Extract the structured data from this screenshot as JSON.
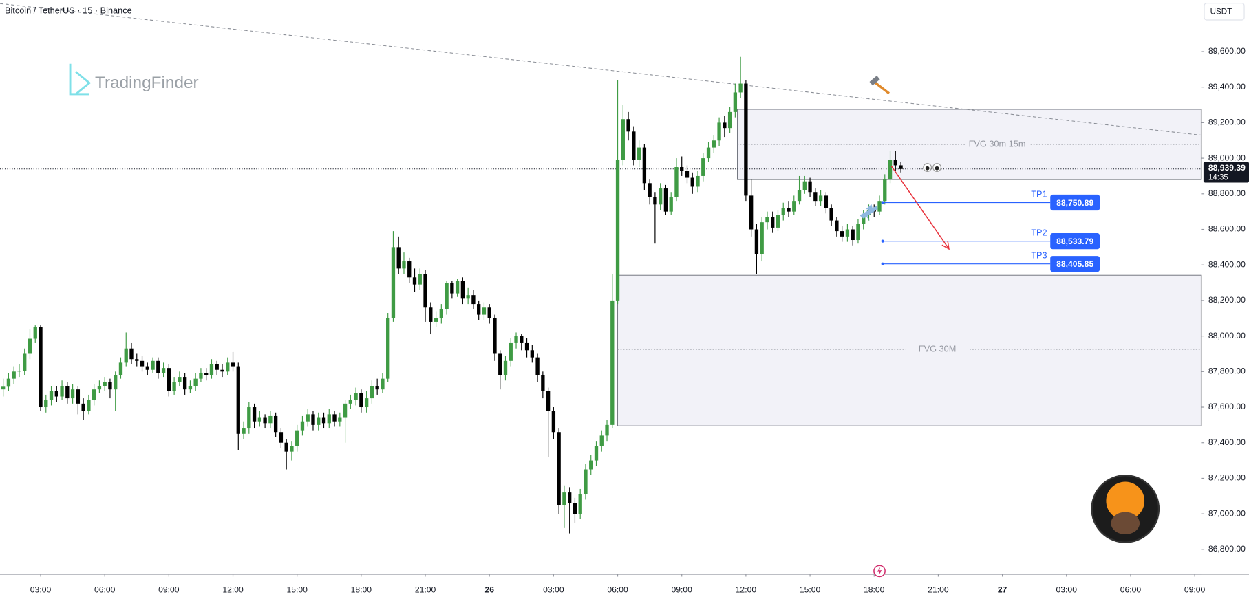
{
  "chart_data": {
    "type": "candlestick",
    "title": "Bitcoin / TetherUS · 15 · Binance",
    "currency": "USDT",
    "watermark": "TradingFinder",
    "up_color": "#3f9b44",
    "down_color": "#000000",
    "grid": false,
    "xlim": [
      1.1,
      57.3
    ],
    "ylim": [
      86660,
      89890
    ],
    "xticks": [
      {
        "value": 3,
        "label": "03:00"
      },
      {
        "value": 6,
        "label": "06:00"
      },
      {
        "value": 9,
        "label": "09:00"
      },
      {
        "value": 12,
        "label": "12:00"
      },
      {
        "value": 15,
        "label": "15:00"
      },
      {
        "value": 18,
        "label": "18:00"
      },
      {
        "value": 21,
        "label": "21:00"
      },
      {
        "value": 24,
        "label": "26"
      },
      {
        "value": 27,
        "label": "03:00"
      },
      {
        "value": 30,
        "label": "06:00"
      },
      {
        "value": 33,
        "label": "09:00"
      },
      {
        "value": 36,
        "label": "12:00"
      },
      {
        "value": 39,
        "label": "15:00"
      },
      {
        "value": 42,
        "label": "18:00"
      },
      {
        "value": 45,
        "label": "21:00"
      },
      {
        "value": 48,
        "label": "27"
      },
      {
        "value": 51,
        "label": "03:00"
      },
      {
        "value": 54,
        "label": "06:00"
      },
      {
        "value": 57,
        "label": "09:00"
      }
    ],
    "yticks": [
      {
        "value": 86800,
        "label": "86,800.00"
      },
      {
        "value": 87000,
        "label": "87,000.00"
      },
      {
        "value": 87200,
        "label": "87,200.00"
      },
      {
        "value": 87400,
        "label": "87,400.00"
      },
      {
        "value": 87600,
        "label": "87,600.00"
      },
      {
        "value": 87800,
        "label": "87,800.00"
      },
      {
        "value": 88000,
        "label": "88,000.00"
      },
      {
        "value": 88200,
        "label": "88,200.00"
      },
      {
        "value": 88400,
        "label": "88,400.00"
      },
      {
        "value": 88600,
        "label": "88,600.00"
      },
      {
        "value": 88800,
        "label": "88,800.00"
      },
      {
        "value": 89000,
        "label": "89,000.00"
      },
      {
        "value": 89200,
        "label": "89,200.00"
      },
      {
        "value": 89400,
        "label": "89,400.00"
      },
      {
        "value": 89600,
        "label": "89,600.00"
      }
    ],
    "x": [
      1.25,
      1.5,
      1.75,
      2,
      2.25,
      2.5,
      2.75,
      3,
      3.25,
      3.5,
      3.75,
      4,
      4.25,
      4.5,
      4.75,
      5,
      5.25,
      5.5,
      5.75,
      6,
      6.25,
      6.5,
      6.75,
      7,
      7.25,
      7.5,
      7.75,
      8,
      8.25,
      8.5,
      8.75,
      9,
      9.25,
      9.5,
      9.75,
      10,
      10.25,
      10.5,
      10.75,
      11,
      11.25,
      11.5,
      11.75,
      12,
      12.25,
      12.5,
      12.75,
      13,
      13.25,
      13.5,
      13.75,
      14,
      14.25,
      14.5,
      14.75,
      15,
      15.25,
      15.5,
      15.75,
      16,
      16.25,
      16.5,
      16.75,
      17,
      17.25,
      17.5,
      17.75,
      18,
      18.25,
      18.5,
      18.75,
      19,
      19.25,
      19.5,
      19.75,
      20,
      20.25,
      20.5,
      20.75,
      21,
      21.25,
      21.5,
      21.75,
      22,
      22.25,
      22.5,
      22.75,
      23,
      23.25,
      23.5,
      23.75,
      24,
      24.25,
      24.5,
      24.75,
      25,
      25.25,
      25.5,
      25.75,
      26,
      26.25,
      26.5,
      26.75,
      27,
      27.25,
      27.5,
      27.75,
      28,
      28.25,
      28.5,
      28.75,
      29,
      29.25,
      29.5,
      29.75,
      30,
      30.25,
      30.5,
      30.75,
      31,
      31.25,
      31.5,
      31.75,
      32,
      32.25,
      32.5,
      32.75,
      33,
      33.25,
      33.5,
      33.75,
      34,
      34.25,
      34.5,
      34.75,
      35,
      35.25,
      35.5,
      35.75,
      36,
      36.25,
      36.5,
      36.75,
      37,
      37.25,
      37.5,
      37.75,
      38,
      38.25,
      38.5,
      38.75,
      39,
      39.25,
      39.5,
      39.75,
      40,
      40.25,
      40.5,
      40.75,
      41,
      41.25,
      41.5,
      41.75,
      42,
      42.25,
      42.5,
      42.75,
      43,
      43.25
    ],
    "candles": [
      [
        87700,
        87760,
        87660,
        87715
      ],
      [
        87715,
        87790,
        87690,
        87760
      ],
      [
        87760,
        87830,
        87730,
        87800
      ],
      [
        87800,
        87840,
        87770,
        87805
      ],
      [
        87805,
        87930,
        87780,
        87900
      ],
      [
        87900,
        88040,
        87870,
        87985
      ],
      [
        87985,
        88060,
        87960,
        88050
      ],
      [
        88050,
        88060,
        87580,
        87600
      ],
      [
        87600,
        87670,
        87570,
        87640
      ],
      [
        87640,
        87720,
        87610,
        87690
      ],
      [
        87690,
        87720,
        87630,
        87660
      ],
      [
        87660,
        87750,
        87640,
        87720
      ],
      [
        87720,
        87740,
        87620,
        87650
      ],
      [
        87650,
        87730,
        87620,
        87700
      ],
      [
        87700,
        87720,
        87560,
        87620
      ],
      [
        87620,
        87650,
        87530,
        87580
      ],
      [
        87580,
        87670,
        87560,
        87640
      ],
      [
        87640,
        87730,
        87610,
        87700
      ],
      [
        87700,
        87750,
        87680,
        87720
      ],
      [
        87720,
        87770,
        87690,
        87740
      ],
      [
        87740,
        87760,
        87650,
        87700
      ],
      [
        87700,
        87800,
        87580,
        87780
      ],
      [
        87780,
        87880,
        87760,
        87850
      ],
      [
        87850,
        88020,
        87830,
        87930
      ],
      [
        87930,
        87960,
        87840,
        87870
      ],
      [
        87870,
        87900,
        87830,
        87860
      ],
      [
        87860,
        87890,
        87800,
        87830
      ],
      [
        87830,
        87850,
        87780,
        87810
      ],
      [
        87810,
        87880,
        87790,
        87860
      ],
      [
        87860,
        87880,
        87760,
        87790
      ],
      [
        87790,
        87850,
        87770,
        87820
      ],
      [
        87820,
        87840,
        87660,
        87690
      ],
      [
        87690,
        87770,
        87670,
        87740
      ],
      [
        87740,
        87800,
        87720,
        87770
      ],
      [
        87770,
        87790,
        87670,
        87700
      ],
      [
        87700,
        87750,
        87680,
        87720
      ],
      [
        87720,
        87790,
        87690,
        87760
      ],
      [
        87760,
        87820,
        87740,
        87790
      ],
      [
        87790,
        87820,
        87750,
        87780
      ],
      [
        87780,
        87870,
        87760,
        87840
      ],
      [
        87840,
        87860,
        87780,
        87810
      ],
      [
        87810,
        87840,
        87770,
        87800
      ],
      [
        87800,
        87880,
        87780,
        87850
      ],
      [
        87850,
        87910,
        87800,
        87830
      ],
      [
        87830,
        87850,
        87360,
        87450
      ],
      [
        87450,
        87520,
        87420,
        87480
      ],
      [
        87480,
        87630,
        87450,
        87600
      ],
      [
        87600,
        87620,
        87480,
        87520
      ],
      [
        87520,
        87580,
        87490,
        87540
      ],
      [
        87540,
        87560,
        87480,
        87510
      ],
      [
        87510,
        87580,
        87480,
        87550
      ],
      [
        87550,
        87570,
        87430,
        87460
      ],
      [
        87460,
        87480,
        87370,
        87400
      ],
      [
        87400,
        87420,
        87250,
        87350
      ],
      [
        87350,
        87410,
        87300,
        87380
      ],
      [
        87380,
        87500,
        87350,
        87470
      ],
      [
        87470,
        87550,
        87440,
        87520
      ],
      [
        87520,
        87590,
        87490,
        87560
      ],
      [
        87560,
        87580,
        87470,
        87500
      ],
      [
        87500,
        87570,
        87470,
        87540
      ],
      [
        87540,
        87570,
        87480,
        87510
      ],
      [
        87510,
        87590,
        87480,
        87560
      ],
      [
        87560,
        87580,
        87490,
        87520
      ],
      [
        87520,
        87570,
        87490,
        87540
      ],
      [
        87540,
        87640,
        87400,
        87620
      ],
      [
        87620,
        87670,
        87590,
        87640
      ],
      [
        87640,
        87710,
        87610,
        87680
      ],
      [
        87680,
        87700,
        87570,
        87600
      ],
      [
        87600,
        87690,
        87570,
        87650
      ],
      [
        87650,
        87750,
        87620,
        87720
      ],
      [
        87720,
        87760,
        87670,
        87700
      ],
      [
        87700,
        87790,
        87680,
        87760
      ],
      [
        87760,
        88130,
        87740,
        88100
      ],
      [
        88100,
        88590,
        88080,
        88500
      ],
      [
        88500,
        88560,
        88350,
        88380
      ],
      [
        88380,
        88470,
        88350,
        88420
      ],
      [
        88420,
        88440,
        88300,
        88330
      ],
      [
        88330,
        88380,
        88250,
        88290
      ],
      [
        88290,
        88380,
        88260,
        88350
      ],
      [
        88350,
        88370,
        88080,
        88160
      ],
      [
        88160,
        88190,
        88010,
        88080
      ],
      [
        88080,
        88140,
        88050,
        88100
      ],
      [
        88100,
        88180,
        88070,
        88150
      ],
      [
        88150,
        88310,
        88120,
        88300
      ],
      [
        88300,
        88310,
        88210,
        88240
      ],
      [
        88240,
        88320,
        88220,
        88310
      ],
      [
        88310,
        88330,
        88180,
        88210
      ],
      [
        88210,
        88270,
        88180,
        88230
      ],
      [
        88230,
        88260,
        88150,
        88180
      ],
      [
        88180,
        88200,
        88090,
        88120
      ],
      [
        88120,
        88190,
        88090,
        88160
      ],
      [
        88160,
        88180,
        88070,
        88100
      ],
      [
        88100,
        88120,
        87860,
        87900
      ],
      [
        87900,
        87920,
        87700,
        87780
      ],
      [
        87780,
        87890,
        87750,
        87860
      ],
      [
        87860,
        87990,
        87830,
        87960
      ],
      [
        87960,
        88020,
        87930,
        88000
      ],
      [
        88000,
        88010,
        87920,
        87960
      ],
      [
        87960,
        87990,
        87880,
        87920
      ],
      [
        87920,
        87950,
        87850,
        87880
      ],
      [
        87880,
        87900,
        87740,
        87780
      ],
      [
        87780,
        87800,
        87650,
        87690
      ],
      [
        87690,
        87710,
        87320,
        87580
      ],
      [
        87580,
        87600,
        87420,
        87460
      ],
      [
        87460,
        87480,
        87000,
        87050
      ],
      [
        87050,
        87160,
        86920,
        87120
      ],
      [
        87120,
        87150,
        86890,
        87060
      ],
      [
        87060,
        87090,
        86950,
        87000
      ],
      [
        87000,
        87140,
        86970,
        87110
      ],
      [
        87110,
        87280,
        87080,
        87250
      ],
      [
        87250,
        87330,
        87220,
        87300
      ],
      [
        87300,
        87410,
        87270,
        87380
      ],
      [
        87380,
        87470,
        87350,
        87440
      ],
      [
        87440,
        87530,
        87410,
        87500
      ],
      [
        87500,
        88350,
        87480,
        88200
      ],
      [
        88200,
        89440,
        88180,
        88990
      ],
      [
        88990,
        89300,
        88960,
        89220
      ],
      [
        89220,
        89260,
        89100,
        89150
      ],
      [
        89150,
        89180,
        88960,
        88990
      ],
      [
        88990,
        89100,
        88950,
        89060
      ],
      [
        89060,
        89080,
        88820,
        88860
      ],
      [
        88860,
        88880,
        88740,
        88780
      ],
      [
        88780,
        88810,
        88520,
        88740
      ],
      [
        88740,
        88860,
        88710,
        88830
      ],
      [
        88830,
        88850,
        88680,
        88700
      ],
      [
        88700,
        88810,
        88680,
        88780
      ],
      [
        88780,
        89000,
        88760,
        88950
      ],
      [
        88950,
        89010,
        88900,
        88930
      ],
      [
        88930,
        88960,
        88860,
        88890
      ],
      [
        88890,
        88920,
        88800,
        88840
      ],
      [
        88840,
        88930,
        88810,
        88900
      ],
      [
        88900,
        89030,
        88870,
        89000
      ],
      [
        89000,
        89090,
        88980,
        89060
      ],
      [
        89060,
        89130,
        89030,
        89100
      ],
      [
        89100,
        89230,
        89070,
        89200
      ],
      [
        89200,
        89240,
        89120,
        89170
      ],
      [
        89170,
        89290,
        89140,
        89260
      ],
      [
        89260,
        89420,
        89230,
        89370
      ],
      [
        89370,
        89570,
        89340,
        89420
      ],
      [
        89420,
        89440,
        88760,
        88790
      ],
      [
        88790,
        88880,
        88560,
        88600
      ],
      [
        88600,
        88630,
        88350,
        88460
      ],
      [
        88460,
        88670,
        88420,
        88640
      ],
      [
        88640,
        88700,
        88600,
        88670
      ],
      [
        88670,
        88700,
        88580,
        88610
      ],
      [
        88610,
        88710,
        88590,
        88680
      ],
      [
        88680,
        88750,
        88650,
        88720
      ],
      [
        88720,
        88760,
        88670,
        88700
      ],
      [
        88700,
        88790,
        88680,
        88760
      ],
      [
        88760,
        88900,
        88740,
        88820
      ],
      [
        88820,
        88900,
        88800,
        88870
      ],
      [
        88870,
        88890,
        88780,
        88810
      ],
      [
        88810,
        88830,
        88730,
        88760
      ],
      [
        88760,
        88820,
        88730,
        88790
      ],
      [
        88790,
        88810,
        88690,
        88720
      ],
      [
        88720,
        88740,
        88620,
        88650
      ],
      [
        88650,
        88670,
        88560,
        88590
      ],
      [
        88590,
        88620,
        88530,
        88560
      ],
      [
        88560,
        88630,
        88530,
        88600
      ],
      [
        88600,
        88620,
        88510,
        88540
      ],
      [
        88540,
        88660,
        88520,
        88630
      ],
      [
        88630,
        88710,
        88600,
        88680
      ],
      [
        88680,
        88740,
        88650,
        88710
      ],
      [
        88710,
        88740,
        88670,
        88700
      ],
      [
        88700,
        88790,
        88680,
        88760
      ],
      [
        88760,
        88910,
        88740,
        88880
      ],
      [
        88880,
        89040,
        88860,
        88990
      ],
      [
        88990,
        89040,
        88930,
        88960
      ],
      [
        88960,
        88980,
        88920,
        88939.39
      ]
    ],
    "last_price": {
      "value": 88939.39,
      "label": "88,939.39",
      "countdown": "14:35"
    },
    "trendline": {
      "x": [
        1.1,
        57.3
      ],
      "y": [
        89870,
        89130
      ]
    },
    "zones": [
      {
        "label": "FVG 30m 15m",
        "top": 89275,
        "bottom": 88880,
        "mid": 89078,
        "x_start": 35.6
      },
      {
        "label": "FVG 30M",
        "top": 88342,
        "bottom": 87495,
        "mid": 87925,
        "x_start": 30.0
      }
    ],
    "targets": [
      {
        "label": "TP1",
        "value": 88750.89,
        "value_label": "88,750.89",
        "x_start": 42.4
      },
      {
        "label": "TP2",
        "value": 88533.79,
        "value_label": "88,533.79",
        "x_start": 42.4
      },
      {
        "label": "TP3",
        "value": 88405.85,
        "value_label": "88,405.85",
        "x_start": 42.4
      }
    ],
    "arrow": {
      "x": [
        42.8,
        45.5
      ],
      "y": [
        88957,
        88490
      ]
    }
  }
}
